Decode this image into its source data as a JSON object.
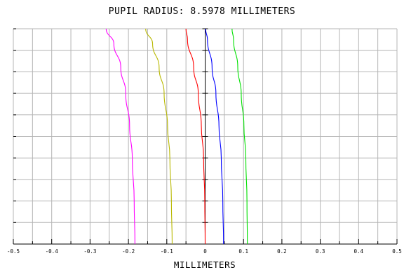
{
  "chart_data": {
    "type": "line",
    "title": "PUPIL RADIUS: 8.5978 MILLIMETERS",
    "xlabel": "MILLIMETERS",
    "ylabel": "",
    "xlim": [
      -0.5,
      0.5
    ],
    "ylim": [
      0,
      1
    ],
    "grid": true,
    "x_ticks": [
      "-0.5",
      "-0.4",
      "-0.3",
      "-0.2",
      "-0.1",
      "0",
      "0.1",
      "0.2",
      "0.3",
      "0.4",
      "0.5"
    ],
    "y_ticks": [
      0.1,
      0.2,
      0.3,
      0.4,
      0.5,
      0.6,
      0.7,
      0.8,
      0.9,
      1.0
    ],
    "series": [
      {
        "color": "#ff00ff",
        "x": [
          -0.183,
          -0.185,
          -0.19,
          -0.197,
          -0.207,
          -0.22,
          -0.238,
          -0.258
        ],
        "y": [
          0,
          0.2,
          0.4,
          0.55,
          0.7,
          0.82,
          0.93,
          1.0
        ]
      },
      {
        "color": "#b8b800",
        "x": [
          -0.086,
          -0.088,
          -0.092,
          -0.098,
          -0.107,
          -0.12,
          -0.137,
          -0.155
        ],
        "y": [
          0,
          0.2,
          0.4,
          0.55,
          0.7,
          0.82,
          0.93,
          1.0
        ]
      },
      {
        "color": "#ff0000",
        "x": [
          0.0,
          -0.001,
          -0.004,
          -0.01,
          -0.018,
          -0.03,
          -0.046,
          -0.05
        ],
        "y": [
          0,
          0.2,
          0.4,
          0.55,
          0.7,
          0.82,
          0.95,
          1.0
        ]
      },
      {
        "color": "#0000ff",
        "x": [
          0.048,
          0.046,
          0.042,
          0.036,
          0.028,
          0.018,
          0.006,
          0.001
        ],
        "y": [
          0,
          0.2,
          0.4,
          0.55,
          0.7,
          0.82,
          0.95,
          1.0
        ]
      },
      {
        "color": "#00e000",
        "x": [
          0.11,
          0.109,
          0.106,
          0.101,
          0.094,
          0.085,
          0.074,
          0.07
        ],
        "y": [
          0,
          0.2,
          0.4,
          0.55,
          0.7,
          0.82,
          0.95,
          1.0
        ]
      }
    ]
  }
}
